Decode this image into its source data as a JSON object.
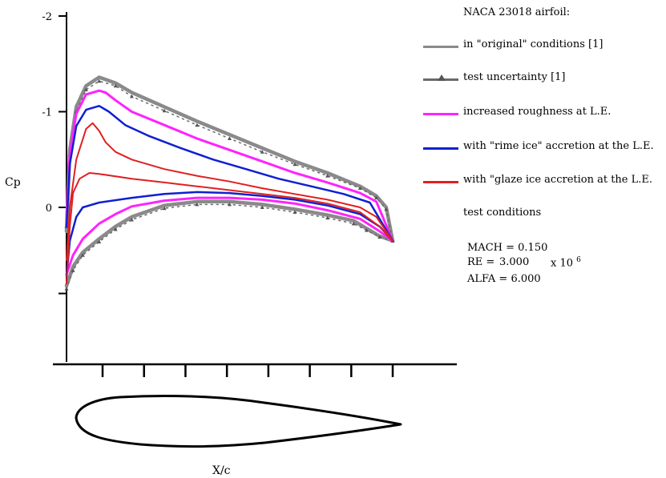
{
  "chart_data": {
    "type": "line",
    "title": "NACA 23018 airfoil:",
    "xlabel": "X/c",
    "ylabel": "Cp",
    "y_inverted": true,
    "xlim": [
      0,
      1
    ],
    "ylim": [
      0.9,
      -2
    ],
    "yticks": [
      {
        "value": -2,
        "label": "-2"
      },
      {
        "value": -1,
        "label": "-1"
      },
      {
        "value": 0,
        "label": "0"
      },
      {
        "value": 0.9,
        "label": ""
      }
    ],
    "xtick_count": 8,
    "grid": false,
    "legend_position": "right",
    "series": [
      {
        "name": "in \"original\" conditions [1]",
        "color": "#8a8a8a",
        "upper": [
          [
            0.0,
            0.25
          ],
          [
            0.01,
            -0.6
          ],
          [
            0.03,
            -1.05
          ],
          [
            0.06,
            -1.27
          ],
          [
            0.1,
            -1.36
          ],
          [
            0.15,
            -1.3
          ],
          [
            0.2,
            -1.2
          ],
          [
            0.3,
            -1.05
          ],
          [
            0.4,
            -0.9
          ],
          [
            0.5,
            -0.76
          ],
          [
            0.6,
            -0.62
          ],
          [
            0.7,
            -0.48
          ],
          [
            0.8,
            -0.36
          ],
          [
            0.9,
            -0.22
          ],
          [
            0.95,
            -0.12
          ],
          [
            0.98,
            0.0
          ],
          [
            1.0,
            0.35
          ]
        ],
        "lower": [
          [
            0.0,
            0.82
          ],
          [
            0.02,
            0.62
          ],
          [
            0.05,
            0.47
          ],
          [
            0.1,
            0.33
          ],
          [
            0.15,
            0.2
          ],
          [
            0.2,
            0.1
          ],
          [
            0.3,
            -0.02
          ],
          [
            0.4,
            -0.06
          ],
          [
            0.5,
            -0.06
          ],
          [
            0.6,
            -0.03
          ],
          [
            0.7,
            0.02
          ],
          [
            0.8,
            0.08
          ],
          [
            0.88,
            0.14
          ],
          [
            0.92,
            0.22
          ],
          [
            0.96,
            0.3
          ],
          [
            1.0,
            0.35
          ]
        ]
      },
      {
        "name": "test uncertainty [1]",
        "color": "#6a6a6a",
        "upper": [
          [
            0.0,
            0.2
          ],
          [
            0.01,
            -0.55
          ],
          [
            0.03,
            -1.0
          ],
          [
            0.06,
            -1.23
          ],
          [
            0.1,
            -1.32
          ],
          [
            0.15,
            -1.27
          ],
          [
            0.2,
            -1.16
          ],
          [
            0.3,
            -1.01
          ],
          [
            0.4,
            -0.86
          ],
          [
            0.5,
            -0.72
          ],
          [
            0.6,
            -0.58
          ],
          [
            0.7,
            -0.45
          ],
          [
            0.8,
            -0.33
          ],
          [
            0.9,
            -0.2
          ],
          [
            0.95,
            -0.1
          ],
          [
            0.98,
            0.02
          ],
          [
            1.0,
            0.35
          ]
        ],
        "lower": [
          [
            0.0,
            0.85
          ],
          [
            0.02,
            0.66
          ],
          [
            0.05,
            0.5
          ],
          [
            0.1,
            0.36
          ],
          [
            0.15,
            0.23
          ],
          [
            0.2,
            0.13
          ],
          [
            0.3,
            0.01
          ],
          [
            0.4,
            -0.03
          ],
          [
            0.5,
            -0.03
          ],
          [
            0.6,
            0.0
          ],
          [
            0.7,
            0.05
          ],
          [
            0.8,
            0.11
          ],
          [
            0.88,
            0.17
          ],
          [
            0.92,
            0.24
          ],
          [
            0.96,
            0.31
          ],
          [
            1.0,
            0.35
          ]
        ]
      },
      {
        "name": "increased roughness at L.E.",
        "color": "#ff22ff",
        "upper": [
          [
            0.0,
            0.1
          ],
          [
            0.01,
            -0.55
          ],
          [
            0.03,
            -0.98
          ],
          [
            0.06,
            -1.18
          ],
          [
            0.1,
            -1.22
          ],
          [
            0.12,
            -1.2
          ],
          [
            0.15,
            -1.12
          ],
          [
            0.2,
            -1.0
          ],
          [
            0.3,
            -0.86
          ],
          [
            0.4,
            -0.72
          ],
          [
            0.5,
            -0.6
          ],
          [
            0.6,
            -0.48
          ],
          [
            0.7,
            -0.36
          ],
          [
            0.8,
            -0.26
          ],
          [
            0.9,
            -0.15
          ],
          [
            0.95,
            -0.06
          ],
          [
            1.0,
            0.35
          ]
        ],
        "lower": [
          [
            0.0,
            0.7
          ],
          [
            0.02,
            0.5
          ],
          [
            0.05,
            0.33
          ],
          [
            0.1,
            0.17
          ],
          [
            0.15,
            0.07
          ],
          [
            0.2,
            -0.01
          ],
          [
            0.3,
            -0.07
          ],
          [
            0.4,
            -0.1
          ],
          [
            0.5,
            -0.1
          ],
          [
            0.6,
            -0.08
          ],
          [
            0.7,
            -0.04
          ],
          [
            0.8,
            0.03
          ],
          [
            0.9,
            0.12
          ],
          [
            0.96,
            0.25
          ],
          [
            1.0,
            0.35
          ]
        ]
      },
      {
        "name": "with \"rime ice\" accretion at the L.E.",
        "color": "#1020d0",
        "upper": [
          [
            0.0,
            0.2
          ],
          [
            0.01,
            -0.45
          ],
          [
            0.03,
            -0.85
          ],
          [
            0.06,
            -1.02
          ],
          [
            0.1,
            -1.06
          ],
          [
            0.13,
            -1.0
          ],
          [
            0.18,
            -0.86
          ],
          [
            0.25,
            -0.75
          ],
          [
            0.35,
            -0.62
          ],
          [
            0.45,
            -0.5
          ],
          [
            0.55,
            -0.4
          ],
          [
            0.65,
            -0.3
          ],
          [
            0.75,
            -0.22
          ],
          [
            0.85,
            -0.14
          ],
          [
            0.93,
            -0.05
          ],
          [
            1.0,
            0.35
          ]
        ],
        "lower": [
          [
            0.0,
            0.72
          ],
          [
            0.01,
            0.35
          ],
          [
            0.03,
            0.1
          ],
          [
            0.05,
            0.0
          ],
          [
            0.1,
            -0.05
          ],
          [
            0.2,
            -0.1
          ],
          [
            0.3,
            -0.14
          ],
          [
            0.4,
            -0.16
          ],
          [
            0.5,
            -0.15
          ],
          [
            0.6,
            -0.12
          ],
          [
            0.7,
            -0.08
          ],
          [
            0.8,
            -0.02
          ],
          [
            0.9,
            0.07
          ],
          [
            0.96,
            0.2
          ],
          [
            1.0,
            0.35
          ]
        ]
      },
      {
        "name": "with \"glaze ice accretion at the L.E.",
        "color": "#e02020",
        "upper": [
          [
            0.0,
            0.55
          ],
          [
            0.01,
            0.0
          ],
          [
            0.03,
            -0.5
          ],
          [
            0.06,
            -0.82
          ],
          [
            0.08,
            -0.88
          ],
          [
            0.1,
            -0.8
          ],
          [
            0.12,
            -0.68
          ],
          [
            0.15,
            -0.58
          ],
          [
            0.2,
            -0.5
          ],
          [
            0.3,
            -0.4
          ],
          [
            0.4,
            -0.33
          ],
          [
            0.5,
            -0.27
          ],
          [
            0.6,
            -0.2
          ],
          [
            0.7,
            -0.14
          ],
          [
            0.8,
            -0.08
          ],
          [
            0.9,
            0.0
          ],
          [
            0.95,
            0.1
          ],
          [
            1.0,
            0.35
          ]
        ],
        "lower": [
          [
            0.0,
            0.8
          ],
          [
            0.01,
            0.2
          ],
          [
            0.02,
            -0.15
          ],
          [
            0.04,
            -0.3
          ],
          [
            0.07,
            -0.36
          ],
          [
            0.1,
            -0.35
          ],
          [
            0.2,
            -0.3
          ],
          [
            0.3,
            -0.26
          ],
          [
            0.4,
            -0.22
          ],
          [
            0.5,
            -0.18
          ],
          [
            0.6,
            -0.14
          ],
          [
            0.7,
            -0.1
          ],
          [
            0.8,
            -0.04
          ],
          [
            0.9,
            0.05
          ],
          [
            0.96,
            0.2
          ],
          [
            1.0,
            0.35
          ]
        ]
      }
    ]
  },
  "legend_items": [
    {
      "label": "in \"original\" conditions [1]",
      "color": "#8a8a8a",
      "marker": false
    },
    {
      "label": "test uncertainty [1]",
      "color": "#6a6a6a",
      "marker": true
    },
    {
      "label": "increased roughness at L.E.",
      "color": "#ff22ff",
      "marker": false
    },
    {
      "label": "with \"rime ice\" accretion at the L.E.",
      "color": "#1020d0",
      "marker": false
    },
    {
      "label": "with \"glaze ice accretion at the L.E.",
      "color": "#e02020",
      "marker": false
    }
  ],
  "test_conditions": {
    "title": "test conditions",
    "mach": "MACH = 0.150",
    "re_label": "RE  =",
    "re_value": "3.000",
    "re_exponent_base": "x 10",
    "re_exponent_power": "6",
    "alfa": "ALFA =  6.000"
  }
}
